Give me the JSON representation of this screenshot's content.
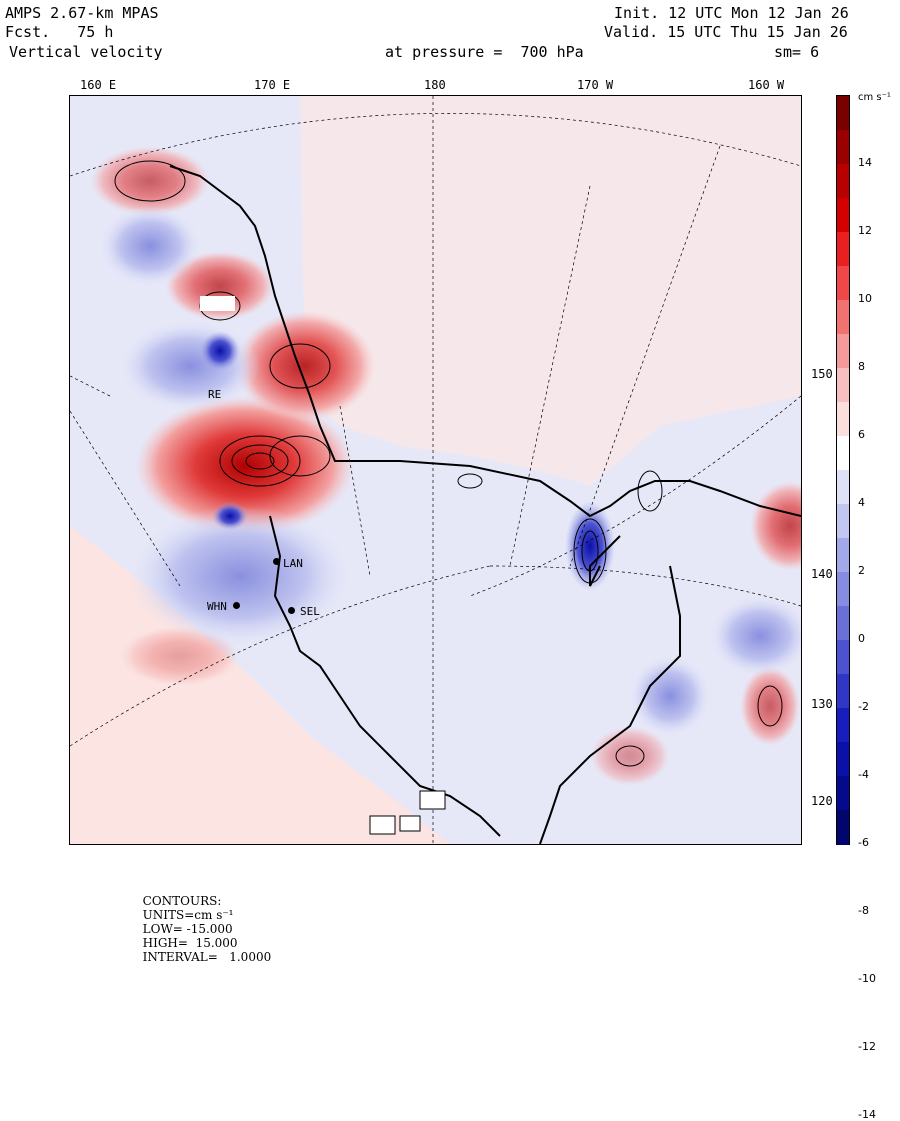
{
  "header": {
    "model": "AMPS 2.67-km MPAS",
    "forecast": "Fcst.   75 h",
    "field": "Vertical velocity",
    "init": "Init. 12 UTC Mon 12 Jan 26",
    "valid": "Valid. 15 UTC Thu 15 Jan 26",
    "level": "at pressure =  700 hPa",
    "smoothing": "sm= 6"
  },
  "longitude_labels": [
    "160 E",
    "170 E",
    "180",
    "170 W",
    "160 W"
  ],
  "latitude_labels": [
    "150 W",
    "140 W",
    "130 W",
    "120 W"
  ],
  "stations": [
    {
      "code": "RE"
    },
    {
      "code": "LAN"
    },
    {
      "code": "WHN"
    },
    {
      "code": "SEL"
    }
  ],
  "colorbar": {
    "unit": "cm s⁻¹",
    "ticks": [
      "14",
      "12",
      "10",
      "8",
      "6",
      "4",
      "2",
      "0",
      "-2",
      "-4",
      "-6",
      "-8",
      "-10",
      "-12",
      "-14"
    ],
    "colors": [
      "#7a0000",
      "#9a0000",
      "#b80000",
      "#d40000",
      "#ea2020",
      "#f04848",
      "#f27272",
      "#f49a9a",
      "#f7c0c0",
      "#fbdede",
      "#ffffff",
      "#dfe1f7",
      "#c2c6f0",
      "#a3a9e8",
      "#868de0",
      "#6a70d8",
      "#4c52d0",
      "#3036c6",
      "#181ebd",
      "#0a10a8",
      "#050a8c",
      "#02066c"
    ]
  },
  "footer": {
    "label": "CONTOURS:",
    "units": "UNITS=cm s⁻¹",
    "low": "LOW= -15.000",
    "high": "HIGH=  15.000",
    "interval": "INTERVAL=   1.0000"
  },
  "map_background": "#fbe4e2",
  "map_blue_tint": "#e4e6f8"
}
